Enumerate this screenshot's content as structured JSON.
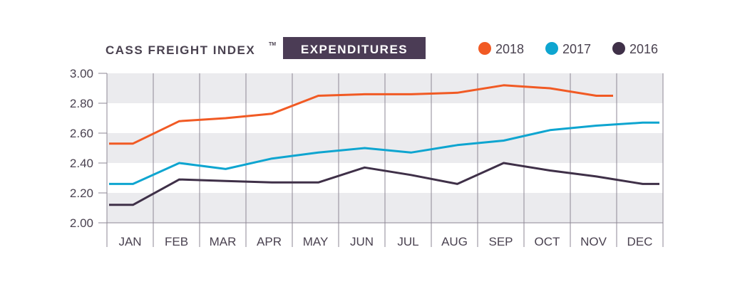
{
  "chart_data": {
    "type": "line",
    "title": "CASS FREIGHT INDEX",
    "title_mark": "TM",
    "subtitle": "EXPENDITURES",
    "categories": [
      "JAN",
      "FEB",
      "MAR",
      "APR",
      "MAY",
      "JUN",
      "JUL",
      "AUG",
      "SEP",
      "OCT",
      "NOV",
      "DEC"
    ],
    "ylim": [
      2.0,
      3.0
    ],
    "yticks": [
      "3.00",
      "2.80",
      "2.60",
      "2.40",
      "2.20",
      "2.00"
    ],
    "ytick_values": [
      3.0,
      2.8,
      2.6,
      2.4,
      2.2,
      2.0
    ],
    "grid": "alternating horizontal bands, vertical month dividers",
    "legend_position": "top-right",
    "series": [
      {
        "name": "2018",
        "color": "#f15a24",
        "values": [
          2.53,
          2.68,
          2.7,
          2.73,
          2.85,
          2.86,
          2.86,
          2.87,
          2.92,
          2.9,
          2.85,
          null
        ]
      },
      {
        "name": "2017",
        "color": "#0ea5d0",
        "values": [
          2.26,
          2.4,
          2.36,
          2.43,
          2.47,
          2.5,
          2.47,
          2.52,
          2.55,
          2.62,
          2.65,
          2.67
        ]
      },
      {
        "name": "2016",
        "color": "#3f3048",
        "values": [
          2.12,
          2.29,
          2.28,
          2.27,
          2.27,
          2.37,
          2.32,
          2.26,
          2.4,
          2.35,
          2.31,
          2.26
        ]
      }
    ],
    "colors": {
      "band": "#ebebee",
      "grid": "#8e8794",
      "label_box": "#4b3c55",
      "text": "#4a4250"
    }
  }
}
